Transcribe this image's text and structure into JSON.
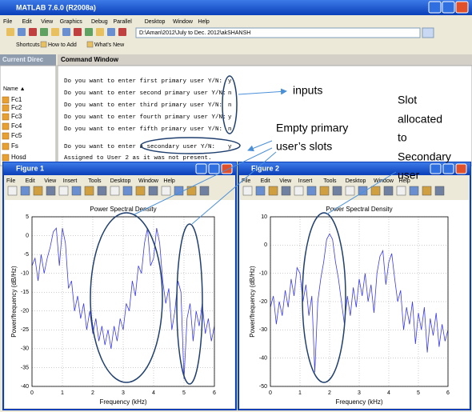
{
  "window": {
    "title": "MATLAB 7.6.0 (R2008a)",
    "menu": [
      "File",
      "Edit",
      "View",
      "Graphics",
      "Debug",
      "Parallel",
      "Desktop",
      "Window",
      "Help"
    ],
    "path": "D:\\Aman\\2012\\July to Dec. 2012\\akSHANSH",
    "shortcuts": [
      "Shortcuts",
      "How to Add",
      "What's New"
    ]
  },
  "current_directory": {
    "header": "Current Direc",
    "column": "Name ▲",
    "files": [
      "Fc1",
      "Fc2",
      "Fc3",
      "Fc4",
      "Fc5",
      "Fs",
      "Hosd"
    ]
  },
  "command_window": {
    "header": "Command Window",
    "lines": [
      {
        "prompt": "Do you want to enter first primary user Y/N:",
        "answer": "y"
      },
      {
        "prompt": "Do you want to enter second primary user Y/N:",
        "answer": "n"
      },
      {
        "prompt": "Do you want to enter third primary user Y/N:",
        "answer": "n"
      },
      {
        "prompt": "Do you want to enter fourth primary user Y/N:",
        "answer": "y"
      },
      {
        "prompt": "Do you want to enter fifth primary user Y/N:",
        "answer": "n"
      },
      {
        "prompt": "Do you want to enter a secondary user Y/N:",
        "answer": "y"
      }
    ],
    "message": "Assigned to User 2 as it was not present."
  },
  "annotations": {
    "inputs": "inputs",
    "empty": [
      "Empty primary",
      "user’s slots"
    ],
    "slot": [
      "Slot",
      "allocated",
      "to",
      "Secondary",
      "user"
    ]
  },
  "figures": [
    {
      "title": "Figure 1",
      "menu": [
        "File",
        "Edit",
        "View",
        "Insert",
        "Tools",
        "Desktop",
        "Window",
        "Help"
      ]
    },
    {
      "title": "Figure 2",
      "menu": [
        "File",
        "Edit",
        "View",
        "Insert",
        "Tools",
        "Desktop",
        "Window",
        "Help"
      ]
    }
  ],
  "chart_data": [
    {
      "type": "line",
      "title": "Power Spectral Density",
      "xlabel": "Frequency (kHz)",
      "ylabel": "Power/frequency (dB/Hz)",
      "x": [
        0,
        0.1,
        0.2,
        0.3,
        0.4,
        0.5,
        0.6,
        0.7,
        0.8,
        0.9,
        1,
        1.1,
        1.2,
        1.3,
        1.4,
        1.5,
        1.6,
        1.7,
        1.8,
        1.9,
        2,
        2.1,
        2.2,
        2.3,
        2.4,
        2.5,
        2.6,
        2.7,
        2.8,
        2.9,
        3,
        3.1,
        3.2,
        3.3,
        3.4,
        3.5,
        3.6,
        3.7,
        3.8,
        3.9,
        4,
        4.1,
        4.2,
        4.3,
        4.4,
        4.5,
        4.6,
        4.7,
        4.8,
        4.9,
        5,
        5.1,
        5.2,
        5.3,
        5.4,
        5.5,
        5.6,
        5.7,
        5.8,
        5.9,
        6
      ],
      "values": [
        -8,
        -6,
        -12,
        -5,
        -10,
        -6,
        -3,
        1,
        2,
        -8,
        2,
        -2,
        -14,
        -12,
        -20,
        -16,
        -22,
        -18,
        -25,
        -20,
        -26,
        -22,
        -28,
        -24,
        -29,
        -25,
        -30,
        -24,
        -28,
        -22,
        -25,
        -18,
        -20,
        -12,
        -16,
        -8,
        -10,
        -2,
        2,
        -8,
        -6,
        2,
        -2,
        -12,
        -18,
        -14,
        -25,
        -20,
        -12,
        -15,
        -38,
        -22,
        -18,
        -28,
        -20,
        -24,
        -18,
        -26,
        -22,
        -28,
        -24
      ],
      "color": "#3a3af0",
      "xlim": [
        0,
        6
      ],
      "ylim": [
        -40,
        5
      ],
      "xticks": [
        0,
        1,
        2,
        3,
        4,
        5,
        6
      ],
      "yticks": [
        5,
        0,
        -5,
        -10,
        -15,
        -20,
        -25,
        -30,
        -35,
        -40
      ],
      "grid": true
    },
    {
      "type": "line",
      "title": "Power Spectral Density",
      "xlabel": "Frequency (kHz)",
      "ylabel": "Power/frequency (dB/Hz)",
      "x": [
        0,
        0.1,
        0.2,
        0.3,
        0.4,
        0.5,
        0.6,
        0.7,
        0.8,
        0.9,
        1,
        1.1,
        1.2,
        1.3,
        1.4,
        1.5,
        1.6,
        1.7,
        1.8,
        1.9,
        2,
        2.1,
        2.2,
        2.3,
        2.4,
        2.5,
        2.6,
        2.7,
        2.8,
        2.9,
        3,
        3.1,
        3.2,
        3.3,
        3.4,
        3.5,
        3.6,
        3.7,
        3.8,
        3.9,
        4,
        4.1,
        4.2,
        4.3,
        4.4,
        4.5,
        4.6,
        4.7,
        4.8,
        4.9,
        5,
        5.1,
        5.2,
        5.3,
        5.4,
        5.5,
        5.6,
        5.7,
        5.8,
        5.9,
        6
      ],
      "values": [
        -22,
        -18,
        -28,
        -20,
        -25,
        -16,
        -22,
        -12,
        -18,
        -8,
        -10,
        -20,
        -14,
        -25,
        -18,
        -45,
        -20,
        -12,
        -6,
        2,
        4,
        2,
        -6,
        -12,
        -20,
        -28,
        -18,
        -25,
        -15,
        -22,
        -12,
        -18,
        -10,
        -20,
        -14,
        -24,
        -10,
        -4,
        -2,
        -14,
        -6,
        -3,
        -12,
        -20,
        -16,
        -30,
        -22,
        -28,
        -20,
        -35,
        -24,
        -30,
        -22,
        -38,
        -26,
        -32,
        -24,
        -36,
        -28,
        -34,
        -30
      ],
      "color": "#3a3af0",
      "xlim": [
        0,
        6
      ],
      "ylim": [
        -50,
        10
      ],
      "xticks": [
        0,
        1,
        2,
        3,
        4,
        5,
        6
      ],
      "yticks": [
        10,
        0,
        -10,
        -20,
        -30,
        -40,
        -50
      ],
      "grid": true
    }
  ]
}
